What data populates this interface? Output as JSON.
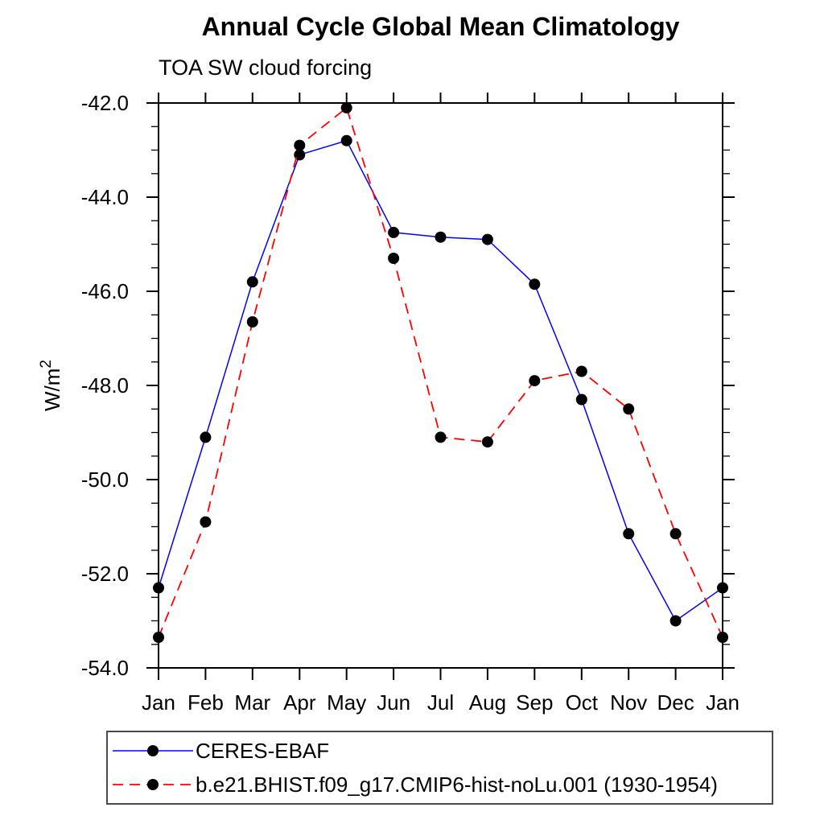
{
  "title": "Annual Cycle Global Mean Climatology",
  "subtitle": "TOA SW cloud forcing",
  "ylabel": {
    "text": "W/m",
    "sup": "2"
  },
  "chart_data": {
    "type": "line",
    "title": "Annual Cycle Global Mean Climatology",
    "subtitle": "TOA SW cloud forcing",
    "xlabel": "",
    "ylabel": "W/m^2",
    "categories": [
      "Jan",
      "Feb",
      "Mar",
      "Apr",
      "May",
      "Jun",
      "Jul",
      "Aug",
      "Sep",
      "Oct",
      "Nov",
      "Dec",
      "Jan"
    ],
    "series": [
      {
        "name": "CERES-EBAF",
        "color": "#0000ff",
        "style": "solid",
        "marker": "filled-circle",
        "marker_color": "#000000",
        "values": [
          -52.3,
          -49.1,
          -45.8,
          -43.1,
          -42.8,
          -44.75,
          -44.85,
          -44.9,
          -45.85,
          -48.3,
          -51.15,
          -53.0,
          -52.3
        ]
      },
      {
        "name": "b.e21.BHIST.f09_g17.CMIP6-hist-noLu.001 (1930-1954)",
        "color": "#ff0000",
        "style": "dashed",
        "marker": "filled-circle",
        "marker_color": "#000000",
        "values": [
          -53.35,
          -50.9,
          -46.65,
          -42.9,
          -42.1,
          -45.3,
          -49.1,
          -49.2,
          -47.9,
          -47.7,
          -48.5,
          -51.15,
          -53.35
        ]
      }
    ],
    "ylim": [
      -54,
      -42
    ],
    "y_major_ticks": [
      -42,
      -44,
      -46,
      -48,
      -50,
      -52,
      -54
    ],
    "y_tick_labels": [
      "-42.0",
      "-44.0",
      "-46.0",
      "-48.0",
      "-50.0",
      "-52.0",
      "-54.0"
    ],
    "y_minor_step": 0.5,
    "grid": false,
    "frame": "box-with-outward-ticks",
    "legend_position": "bottom-left"
  }
}
